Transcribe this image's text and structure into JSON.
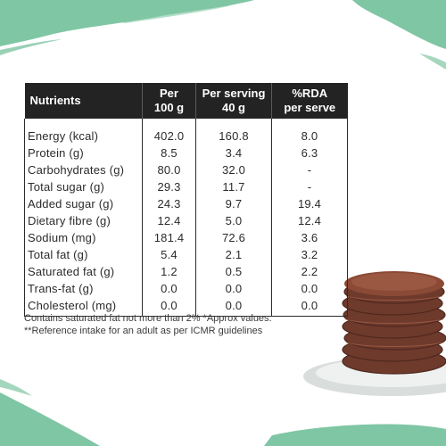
{
  "table": {
    "headers": [
      [
        "Nutrients"
      ],
      [
        "Per",
        "100 g"
      ],
      [
        "Per serving",
        "40 g"
      ],
      [
        "%RDA",
        "per serve"
      ]
    ],
    "rows": [
      [
        "Energy (kcal)",
        "402.0",
        "160.8",
        "8.0"
      ],
      [
        "Protein (g)",
        "8.5",
        "3.4",
        "6.3"
      ],
      [
        "Carbohydrates (g)",
        "80.0",
        "32.0",
        "-"
      ],
      [
        "Total sugar (g)",
        "29.3",
        "11.7",
        "-"
      ],
      [
        "Added sugar (g)",
        "24.3",
        "9.7",
        "19.4"
      ],
      [
        "Dietary fibre (g)",
        "12.4",
        "5.0",
        "12.4"
      ],
      [
        "Sodium (mg)",
        "181.4",
        "72.6",
        "3.6"
      ],
      [
        "Total fat (g)",
        "5.4",
        "2.1",
        "3.2"
      ],
      [
        "Saturated fat (g)",
        "1.2",
        "0.5",
        "2.2"
      ],
      [
        "Trans-fat (g)",
        "0.0",
        "0.0",
        "0.0"
      ],
      [
        "Cholesterol (mg)",
        "0.0",
        "0.0",
        "0.0"
      ]
    ]
  },
  "notes": [
    "Contains saturated fat not more than 2% *Approx values.",
    "**Reference intake for an adult as per ICMR guidelines"
  ],
  "colors": {
    "header_bg": "#232323",
    "brush_green": "#7fc6a4",
    "pancake": "#7a4030",
    "plate": "#dfe3e2"
  }
}
